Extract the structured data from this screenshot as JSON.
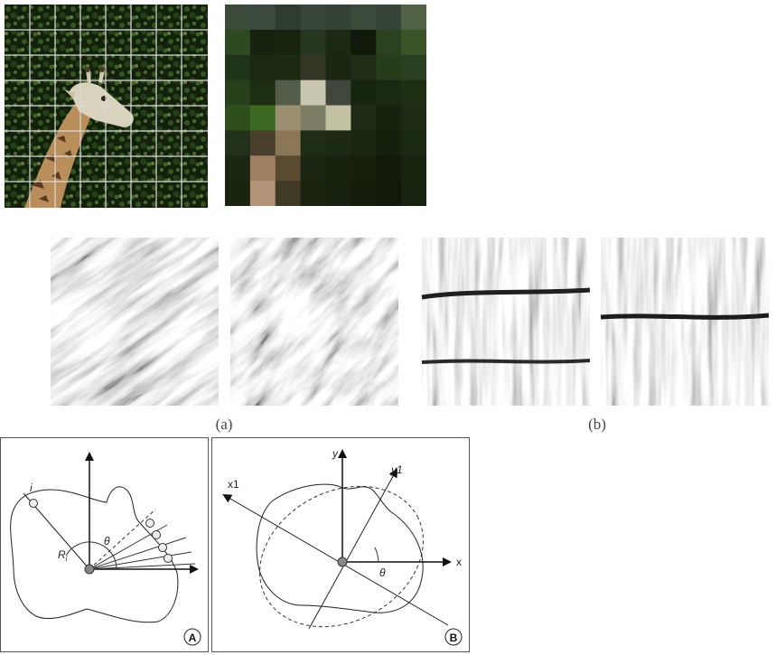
{
  "figures": {
    "giraffe_photo": {
      "grid_cols": 8,
      "grid_rows": 8,
      "description_icon": "giraffe-photo"
    },
    "pixel_block": {
      "cols": 8,
      "rows": 8,
      "colors": [
        [
          "#3b4a39",
          "#3c4a3d",
          "#2f3c30",
          "#38473a",
          "#344236",
          "#3a4a3b",
          "#374538",
          "#526247"
        ],
        [
          "#2e4a23",
          "#16230f",
          "#18240f",
          "#27361e",
          "#1c2a14",
          "#11190b",
          "#2b4220",
          "#3c5328"
        ],
        [
          "#1e3317",
          "#1b2912",
          "#1c2a12",
          "#333625",
          "#1a2813",
          "#1f2d16",
          "#273d19",
          "#2a4020"
        ],
        [
          "#274019",
          "#1d2e12",
          "#545c4a",
          "#c9c7b1",
          "#41473a",
          "#16250f",
          "#1a2912",
          "#1f2f13"
        ],
        [
          "#2e4f1c",
          "#3d6a23",
          "#9b8e71",
          "#7b7c63",
          "#c3c1a4",
          "#1f2a17",
          "#17220f",
          "#1d2c13"
        ],
        [
          "#22311a",
          "#4a3e2d",
          "#8b7658",
          "#1f2c16",
          "#1c2a14",
          "#1a2611",
          "#15200d",
          "#1a2a12"
        ],
        [
          "#1b2713",
          "#a08062",
          "#5a4a32",
          "#1b2614",
          "#18230f",
          "#16200d",
          "#121a0b",
          "#18240f"
        ],
        [
          "#1a2510",
          "#b49478",
          "#3e3a26",
          "#1a2411",
          "#172110",
          "#141d0c",
          "#111a0a",
          "#182411"
        ]
      ]
    },
    "texture_labels": {
      "a": "(a)",
      "b": "(b)"
    },
    "diagram_A": {
      "badge": "A",
      "point_label": "i",
      "radius_label_main": "R",
      "radius_label_sub": "i",
      "angle_label": "θ"
    },
    "diagram_B": {
      "badge": "B",
      "x_label": "x",
      "y_label": "y",
      "x1_label": "x1",
      "y1_label": "y1",
      "angle_label": "θ"
    }
  }
}
